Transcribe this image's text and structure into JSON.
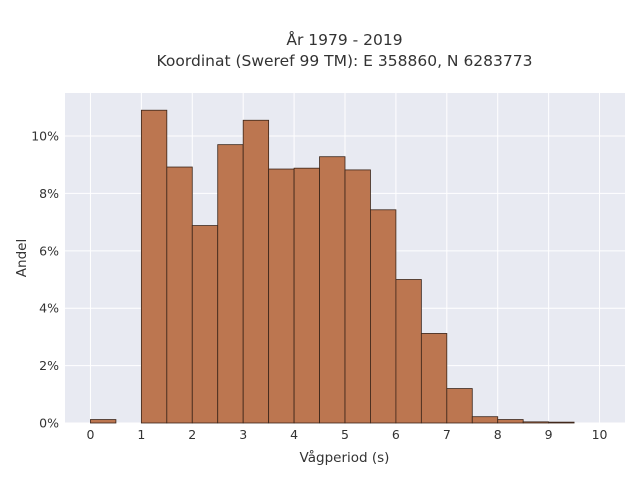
{
  "chart_data": {
    "type": "bar",
    "title": [
      "År 1979 - 2019",
      "Koordinat (Sweref 99 TM): E 358860, N 6283773"
    ],
    "xlabel": "Vågperiod (s)",
    "ylabel": "Andel",
    "xlim": [
      -0.5,
      10.5
    ],
    "ylim": [
      0,
      11.5
    ],
    "x_ticks": [
      0,
      1,
      2,
      3,
      4,
      5,
      6,
      7,
      8,
      9,
      10
    ],
    "x_tick_labels": [
      "0",
      "1",
      "2",
      "3",
      "4",
      "5",
      "6",
      "7",
      "8",
      "9",
      "10"
    ],
    "y_ticks": [
      0,
      2,
      4,
      6,
      8,
      10
    ],
    "y_tick_labels": [
      "0%",
      "2%",
      "4%",
      "6%",
      "8%",
      "10%"
    ],
    "bin_width": 0.5,
    "bins": [
      {
        "start": 0.0,
        "value": 0.12
      },
      {
        "start": 0.5,
        "value": 0.0
      },
      {
        "start": 1.0,
        "value": 10.9
      },
      {
        "start": 1.5,
        "value": 8.92
      },
      {
        "start": 2.0,
        "value": 6.88
      },
      {
        "start": 2.5,
        "value": 9.7
      },
      {
        "start": 3.0,
        "value": 10.55
      },
      {
        "start": 3.5,
        "value": 8.85
      },
      {
        "start": 4.0,
        "value": 8.88
      },
      {
        "start": 4.5,
        "value": 9.28
      },
      {
        "start": 5.0,
        "value": 8.82
      },
      {
        "start": 5.5,
        "value": 7.43
      },
      {
        "start": 6.0,
        "value": 5.0
      },
      {
        "start": 6.5,
        "value": 3.12
      },
      {
        "start": 7.0,
        "value": 1.2
      },
      {
        "start": 7.5,
        "value": 0.22
      },
      {
        "start": 8.0,
        "value": 0.12
      },
      {
        "start": 8.5,
        "value": 0.04
      },
      {
        "start": 9.0,
        "value": 0.03
      }
    ],
    "grid": true,
    "bar_color": "#bc7650",
    "bar_edge_color": "#3a2418",
    "plot_background": "#e8eaf2",
    "grid_color": "#ffffff"
  }
}
